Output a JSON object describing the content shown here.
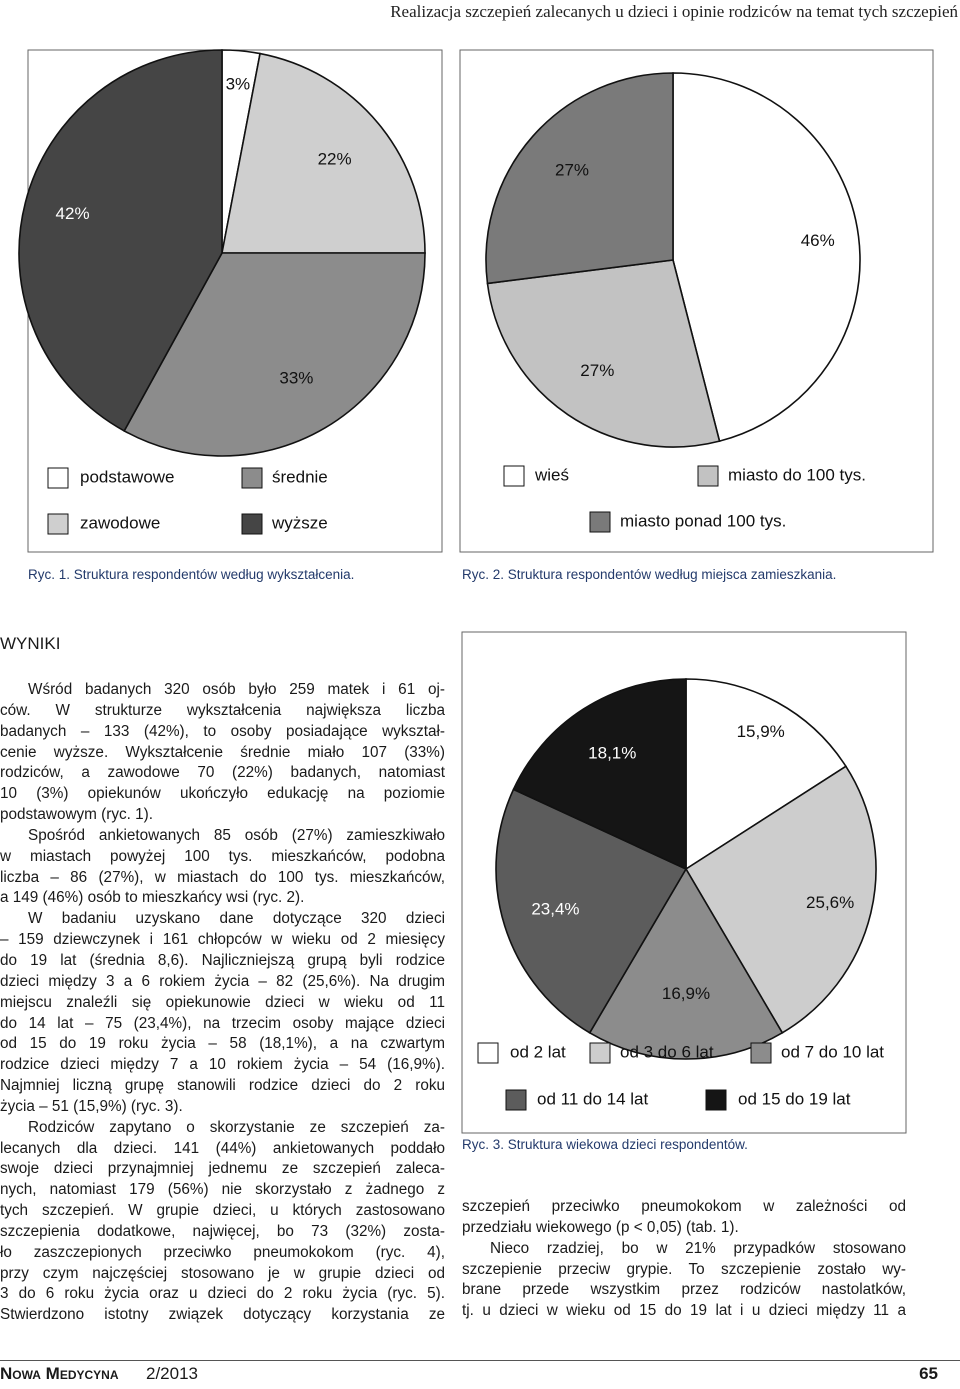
{
  "header": {
    "running_title": "Realizacja szczepień zalecanych u dzieci i opinie rodziców na temat tych szczepień"
  },
  "chart_data": [
    {
      "type": "pie",
      "categories": [
        "podstawowe",
        "zawodowe",
        "średnie",
        "wyższe"
      ],
      "values": [
        3,
        22,
        33,
        42
      ],
      "value_labels": [
        "3%",
        "22%",
        "33%",
        "42%"
      ],
      "colors": [
        "#ffffff",
        "#cfcfcf",
        "#8c8c8c",
        "#454545"
      ],
      "caption": "Ryc. 1. Struktura respondentów według wykształcenia."
    },
    {
      "type": "pie",
      "categories": [
        "wieś",
        "miasto do 100 tys.",
        "miasto ponad 100 tys."
      ],
      "values": [
        46,
        27,
        27
      ],
      "value_labels": [
        "46%",
        "27%",
        "27%"
      ],
      "colors": [
        "#ffffff",
        "#c2c2c2",
        "#7a7a7a"
      ],
      "caption": "Ryc. 2. Struktura respondentów według miejsca zamieszkania."
    },
    {
      "type": "pie",
      "categories": [
        "od 2 lat",
        "od 3 do 6 lat",
        "od 7 do 10 lat",
        "od 11 do 14 lat",
        "od 15 do 19 lat"
      ],
      "values": [
        15.9,
        25.6,
        16.9,
        23.4,
        18.1
      ],
      "value_labels": [
        "15,9%",
        "25,6%",
        "16,9%",
        "23,4%",
        "18,1%"
      ],
      "colors": [
        "#ffffff",
        "#cdcdcd",
        "#8c8c8c",
        "#5c5c5c",
        "#151515"
      ],
      "caption": "Ryc. 3. Struktura wiekowa dzieci respondentów."
    }
  ],
  "section_heading": "WYNIKI",
  "left_column": [
    [
      "Wśród badanych 320 osób było 259 matek i 61 oj-",
      "ców. W strukturze wykształcenia największa liczba",
      "badanych – 133 (42%), to osoby posiadające wykształ-",
      "cenie wyższe. Wykształcenie średnie miało 107 (33%)",
      "rodziców, a zawodowe 70 (22%) badanych, natomiast",
      "10 (3%) opiekunów ukończyło edukację na poziomie",
      "podstawowym (ryc. 1)."
    ],
    [
      "Spośród ankietowanych 85 osób (27%) zamieszkiwało",
      "w miastach powyżej 100 tys. mieszkańców, podobna",
      "liczba – 86 (27%), w miastach do 100 tys. mieszkańców,",
      "a 149 (46%) osób to mieszkańcy wsi (ryc. 2)."
    ],
    [
      "W badaniu uzyskano dane dotyczące 320 dzieci",
      "– 159 dziewczynek i 161 chłopców w wieku od 2 miesięcy",
      "do 19 lat (średnia 8,6). Najliczniejszą grupą byli rodzice",
      "dzieci między 3 a 6 rokiem życia – 82 (25,6%). Na drugim",
      "miejscu znaleźli się opiekunowie dzieci w wieku od 11",
      "do 14 lat – 75 (23,4%), na trzecim osoby mające dzieci",
      "od 15 do 19 roku życia – 58 (18,1%), a na czwartym",
      "rodzice dzieci między 7 a 10 rokiem życia – 54 (16,9%).",
      "Najmniej liczną grupę stanowili rodzice dzieci do 2 roku",
      "życia – 51 (15,9%) (ryc. 3)."
    ],
    [
      "Rodziców zapytano o skorzystanie ze szczepień za-",
      "lecanych dla dzieci. 141 (44%) ankietowanych poddało",
      "swoje dzieci przynajmniej jednemu ze szczepień zaleca-",
      "nych, natomiast 179 (56%) nie skorzystało z żadnego z",
      "tych szczepień. W grupie dzieci, u których zastosowano",
      "szczepienia dodatkowe, najwięcej, bo 73 (32%) zosta-",
      "ło zaszczepionych przeciwko pneumokokom (ryc. 4),",
      "przy czym najczęściej stosowano je w grupie dzieci od",
      "3 do 6 roku życia oraz u dzieci do 2 roku życia (ryc. 5).",
      "Stwierdzono istotny związek dotyczący korzystania ze"
    ]
  ],
  "right_column": [
    [
      "szczepień przeciwko pneumokokom w zależności od",
      "przedziału wiekowego (p < 0,05) (tab. 1)."
    ],
    [
      "Nieco rzadziej, bo w 21% przypadków stosowano",
      "szczepienie przeciw grypie. To szczepienie zostało wy-",
      "brane przede wszystkim przez rodziców nastolatków,",
      "tj. u dzieci w wieku od 15 do 19 lat i u dzieci między 11 a"
    ]
  ],
  "footer": {
    "journal": "Nowa Medycyna",
    "issue": "2/2013",
    "page": "65"
  }
}
